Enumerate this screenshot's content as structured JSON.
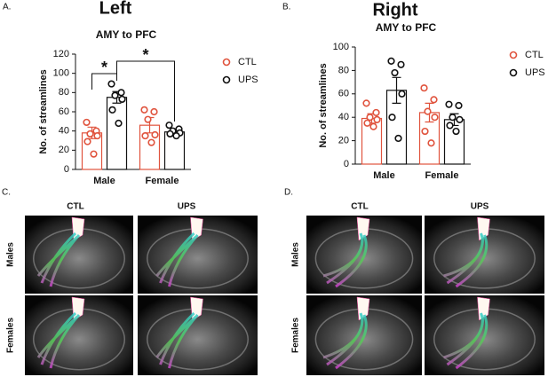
{
  "chart_data": [
    {
      "type": "bar",
      "label": "A.",
      "title": "Left",
      "subtitle": "AMY to PFC",
      "ylabel": "No. of streamlines",
      "categories": [
        "Male",
        "Female"
      ],
      "series": [
        {
          "name": "CTL",
          "color": "#e0533d",
          "values": [
            38,
            46
          ],
          "errors": [
            6,
            8
          ],
          "points": [
            [
              49,
              40,
              37,
              35,
              29,
              16
            ],
            [
              62,
              60,
              52,
              36,
              35,
              28
            ]
          ]
        },
        {
          "name": "UPS",
          "color": "#111111",
          "values": [
            75,
            39
          ],
          "errors": [
            6,
            3
          ],
          "points": [
            [
              89,
              80,
              77,
              73,
              62,
              48
            ],
            [
              46,
              42,
              40,
              38,
              37,
              35
            ]
          ]
        }
      ],
      "annotations": [
        "*",
        "*"
      ],
      "ylim": [
        0,
        120
      ],
      "yticks": [
        0,
        20,
        40,
        60,
        80,
        100,
        120
      ]
    },
    {
      "type": "bar",
      "label": "B.",
      "title": "Right",
      "subtitle": "AMY to PFC",
      "ylabel": "No. of streamlines",
      "categories": [
        "Male",
        "Female"
      ],
      "series": [
        {
          "name": "CTL",
          "color": "#e0533d",
          "values": [
            39,
            44
          ],
          "errors": [
            4,
            8
          ],
          "points": [
            [
              52,
              44,
              40,
              38,
              35,
              32
            ],
            [
              65,
              55,
              45,
              40,
              28,
              18
            ]
          ]
        },
        {
          "name": "UPS",
          "color": "#111111",
          "values": [
            63,
            38
          ],
          "errors": [
            11,
            5
          ],
          "points": [
            [
              88,
              85,
              78,
              60,
              40,
              22
            ],
            [
              51,
              50,
              40,
              38,
              33,
              28
            ]
          ]
        }
      ],
      "annotations": [],
      "ylim": [
        0,
        100
      ],
      "yticks": [
        0,
        20,
        40,
        60,
        80,
        100
      ]
    }
  ],
  "image_panels": [
    {
      "label": "C.",
      "columns": [
        "CTL",
        "UPS"
      ],
      "rows": [
        "Males",
        "Females"
      ]
    },
    {
      "label": "D.",
      "columns": [
        "CTL",
        "UPS"
      ],
      "rows": [
        "Males",
        "Females"
      ]
    }
  ]
}
